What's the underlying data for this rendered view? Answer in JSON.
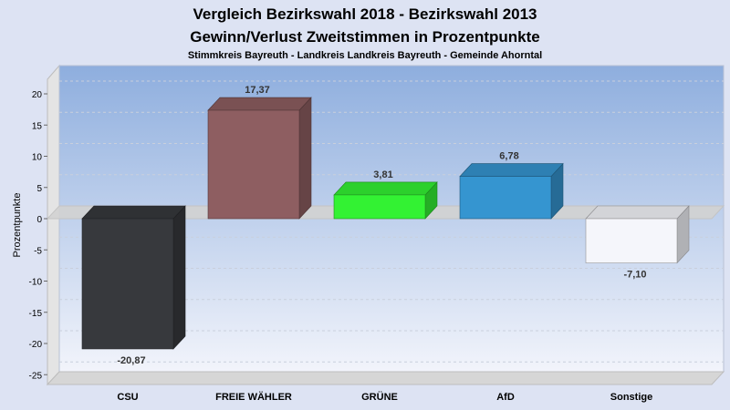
{
  "chart_data": {
    "type": "bar",
    "title": "Vergleich Bezirkswahl 2018 - Bezirkswahl 2013",
    "title2": "Gewinn/Verlust Zweitstimmen in Prozentpunkte",
    "subtitle": "Stimmkreis Bayreuth - Landkreis Landkreis Bayreuth - Gemeinde Ahorntal",
    "ylabel": "Prozentpunkte",
    "ylim": [
      -25,
      20
    ],
    "yticks": [
      20,
      15,
      10,
      5,
      0,
      -5,
      -10,
      -15,
      -20,
      -25
    ],
    "categories": [
      "CSU",
      "FREIE WÄHLER",
      "GRÜNE",
      "AfD",
      "Sonstige"
    ],
    "values": [
      -20.87,
      17.37,
      3.81,
      6.78,
      -7.1
    ],
    "value_labels": [
      "-20,87",
      "17,37",
      "3,81",
      "6,78",
      "-7,10"
    ],
    "colors": [
      "#37393d",
      "#8e5e61",
      "#33f233",
      "#3595d0",
      "#f5f6fb"
    ],
    "grid": true,
    "legend": "none"
  }
}
